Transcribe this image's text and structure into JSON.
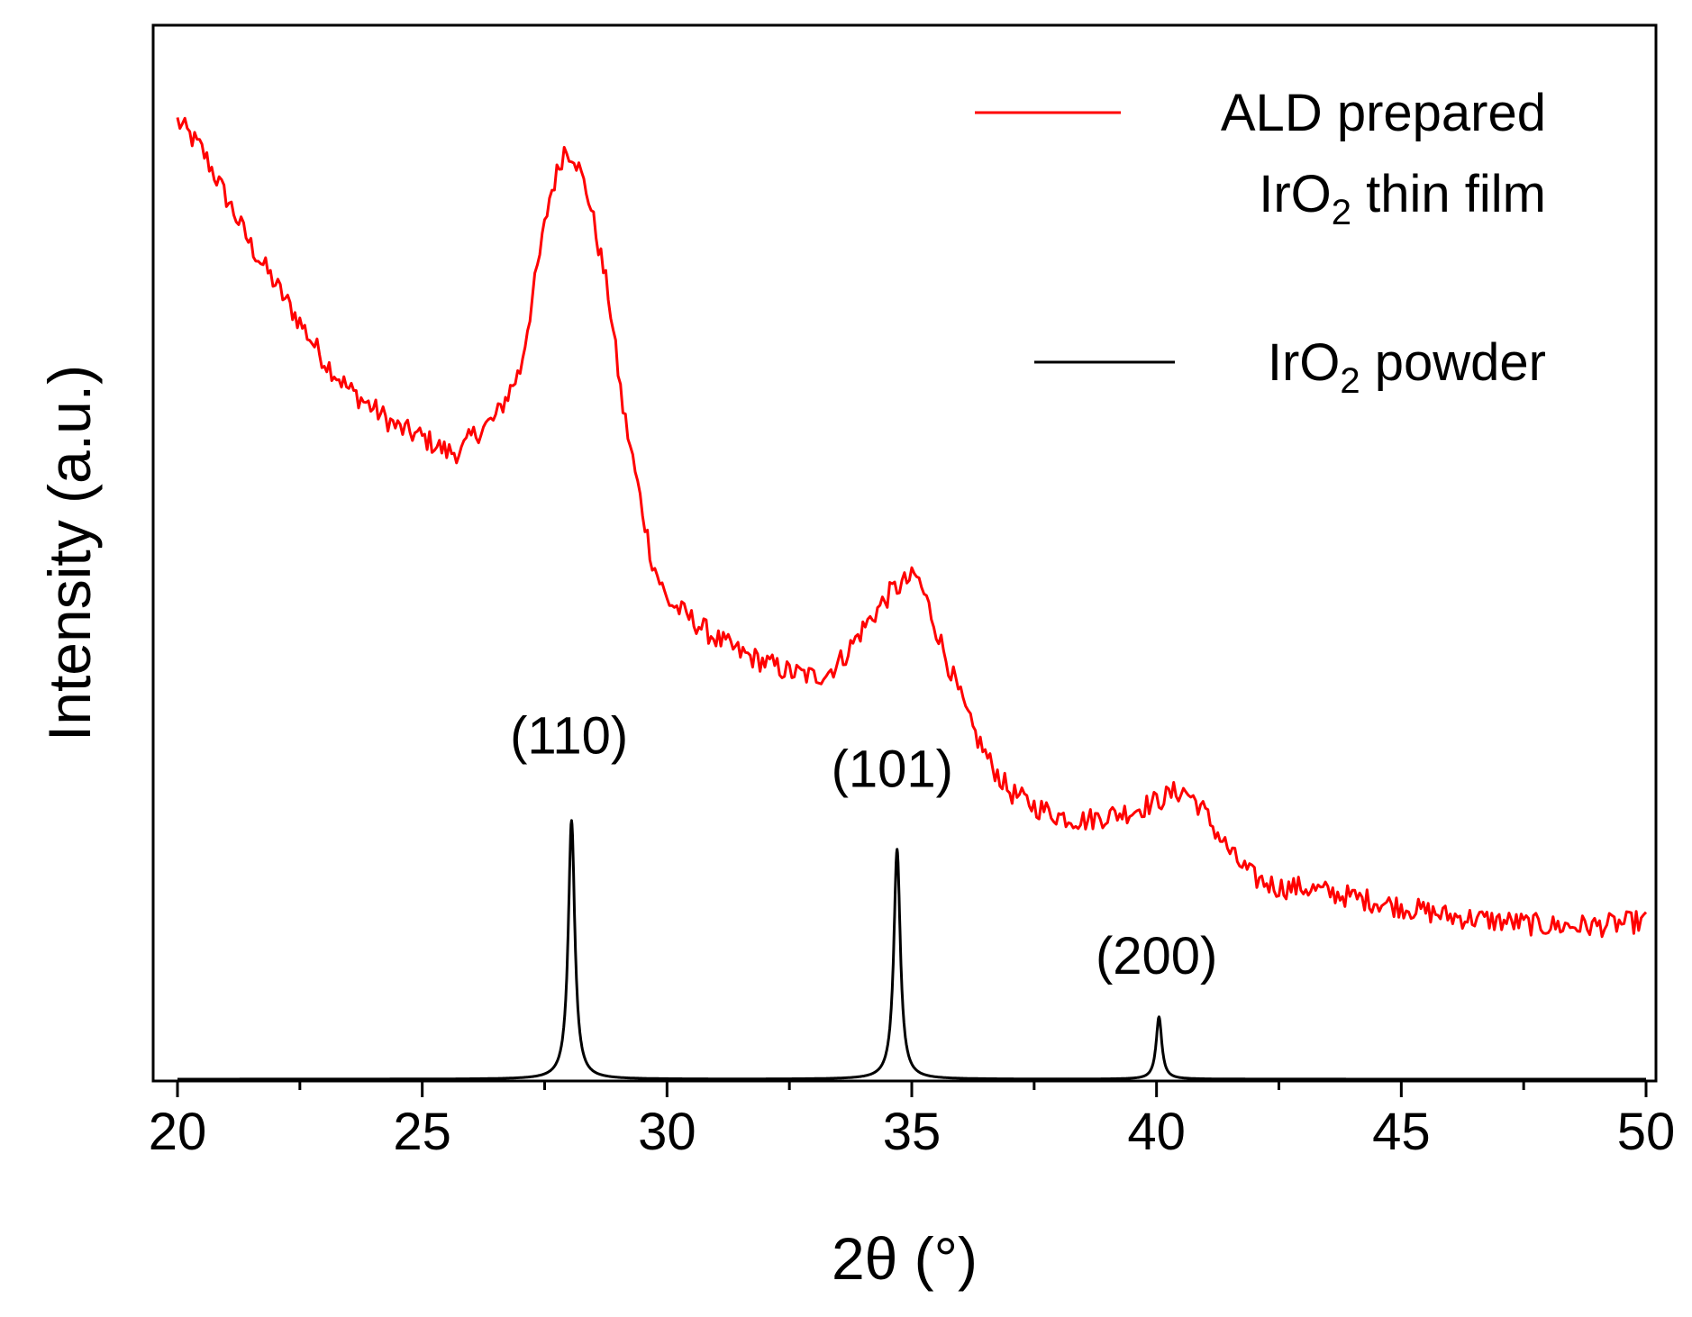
{
  "chart_data": {
    "type": "line",
    "xlabel": "2θ (°)",
    "ylabel": "Intensity (a.u.)",
    "xlim": [
      20,
      50
    ],
    "ylim": [
      0,
      1.1
    ],
    "xticks": [
      "20",
      "25",
      "30",
      "35",
      "40",
      "45",
      "50"
    ],
    "yticks_shown": false,
    "grid": false,
    "legend_position": "top-right",
    "legend": [
      {
        "series": "film",
        "lines": [
          {
            "main": "ALD prepared"
          },
          {
            "main": "IrO",
            "sub": "2",
            "rest": " thin film"
          }
        ]
      },
      {
        "series": "powder",
        "lines": [
          {
            "main": "IrO",
            "sub": "2",
            "rest": " powder"
          }
        ]
      }
    ],
    "series": [
      {
        "id": "film",
        "color": "#ff0000",
        "noise": 0.012,
        "x": [
          20,
          20.5,
          21,
          21.5,
          22,
          22.5,
          23,
          23.5,
          24,
          24.5,
          25,
          25.5,
          25.8,
          26,
          26.5,
          27,
          27.3,
          27.6,
          27.9,
          28.1,
          28.4,
          28.8,
          29.1,
          29.4,
          29.7,
          30,
          30.5,
          31,
          31.5,
          32,
          32.5,
          33,
          33.3,
          33.6,
          34,
          34.3,
          34.6,
          34.9,
          35.1,
          35.3,
          35.7,
          36.2,
          36.6,
          37,
          37.5,
          38,
          38.5,
          39,
          39.5,
          40,
          40.4,
          40.6,
          40.9,
          41.2,
          41.6,
          42,
          42.5,
          43,
          43.5,
          44,
          45,
          46,
          47,
          48,
          49,
          50
        ],
        "y": [
          1.0,
          0.97,
          0.92,
          0.87,
          0.83,
          0.79,
          0.75,
          0.72,
          0.7,
          0.68,
          0.67,
          0.655,
          0.655,
          0.67,
          0.69,
          0.74,
          0.83,
          0.92,
          0.97,
          0.965,
          0.92,
          0.82,
          0.7,
          0.62,
          0.54,
          0.5,
          0.48,
          0.46,
          0.445,
          0.435,
          0.425,
          0.42,
          0.425,
          0.44,
          0.47,
          0.49,
          0.51,
          0.52,
          0.525,
          0.5,
          0.44,
          0.37,
          0.33,
          0.3,
          0.285,
          0.275,
          0.27,
          0.275,
          0.28,
          0.29,
          0.3,
          0.3,
          0.285,
          0.26,
          0.23,
          0.21,
          0.2,
          0.2,
          0.195,
          0.19,
          0.18,
          0.17,
          0.165,
          0.16,
          0.16,
          0.165
        ]
      },
      {
        "id": "powder",
        "color": "#000000",
        "baseline": 0.0,
        "peaks": [
          {
            "x": 28.05,
            "height": 0.27,
            "width": 0.08
          },
          {
            "x": 34.7,
            "height": 0.24,
            "width": 0.08
          },
          {
            "x": 40.05,
            "height": 0.065,
            "width": 0.07
          }
        ]
      }
    ],
    "annotations": [
      {
        "text": "(110)",
        "x": 28.0,
        "y": 0.34
      },
      {
        "text": "(101)",
        "x": 34.6,
        "y": 0.305
      },
      {
        "text": "(200)",
        "x": 40.0,
        "y": 0.11
      }
    ]
  }
}
